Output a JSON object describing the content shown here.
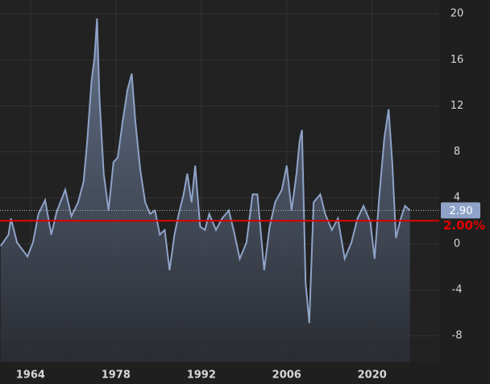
{
  "chart_data": {
    "type": "area",
    "x": [
      1959.1,
      1960.4,
      1960.8,
      1961.8,
      1963.5,
      1964.4,
      1965.3,
      1966.4,
      1967.4,
      1968.3,
      1969.7,
      1970.7,
      1971.8,
      1972.7,
      1973.3,
      1974.0,
      1974.5,
      1974.9,
      1975.3,
      1976.0,
      1976.8,
      1977.6,
      1978.3,
      1979.1,
      1979.9,
      1980.6,
      1981.2,
      1982.0,
      1982.8,
      1983.6,
      1984.4,
      1985.2,
      1986.0,
      1986.8,
      1987.6,
      1988.3,
      1989.1,
      1989.7,
      1990.4,
      1991.0,
      1991.8,
      1992.6,
      1993.3,
      1994.4,
      1995.4,
      1996.5,
      1997.3,
      1998.3,
      1999.4,
      2000.4,
      2001.2,
      2002.3,
      2003.2,
      2004.1,
      2005.2,
      2006.0,
      2006.8,
      2007.6,
      2008.1,
      2008.5,
      2009.1,
      2009.7,
      2010.4,
      2011.5,
      2012.3,
      2013.4,
      2014.4,
      2015.5,
      2016.6,
      2017.6,
      2018.6,
      2019.7,
      2020.4,
      2021.2,
      2022.0,
      2022.7,
      2023.3,
      2023.9,
      2024.7,
      2025.4,
      2026.2
    ],
    "series": [
      {
        "color": "#8fa3c8",
        "values": [
          -0.2,
          0.8,
          2.2,
          0.1,
          -1.1,
          0.1,
          2.6,
          3.8,
          0.8,
          2.8,
          4.7,
          2.4,
          3.6,
          5.4,
          8.9,
          14.1,
          16.2,
          19.6,
          12.7,
          6.1,
          2.9,
          7.1,
          7.5,
          10.6,
          13.4,
          14.8,
          10.6,
          6.4,
          3.6,
          2.6,
          2.9,
          0.8,
          1.2,
          -2.3,
          0.8,
          2.6,
          4.3,
          6.1,
          3.6,
          6.8,
          1.5,
          1.2,
          2.6,
          1.2,
          2.2,
          2.9,
          1.2,
          -1.3,
          0.1,
          4.3,
          4.3,
          -2.3,
          1.5,
          3.6,
          4.7,
          6.8,
          2.9,
          6.1,
          8.9,
          9.9,
          -3.4,
          -6.9,
          3.6,
          4.3,
          2.6,
          1.2,
          2.2,
          -1.3,
          0.1,
          2.2,
          3.3,
          1.9,
          -1.3,
          4.3,
          9.2,
          11.7,
          7.1,
          0.5,
          2.2,
          3.3,
          2.9
        ]
      }
    ],
    "last_value": {
      "value": 2.9,
      "label": "2.90"
    },
    "reference_line": {
      "value": 2,
      "label": "2.00%",
      "color": "#e00000"
    },
    "xlim": [
      1959,
      2031
    ],
    "xticks": [
      1964,
      1978,
      1992,
      2006,
      2020
    ],
    "ylim": [
      -10.3,
      21.2
    ],
    "yticks": [
      20,
      16,
      12,
      8,
      4,
      0,
      -4,
      -8
    ],
    "grid": true
  }
}
